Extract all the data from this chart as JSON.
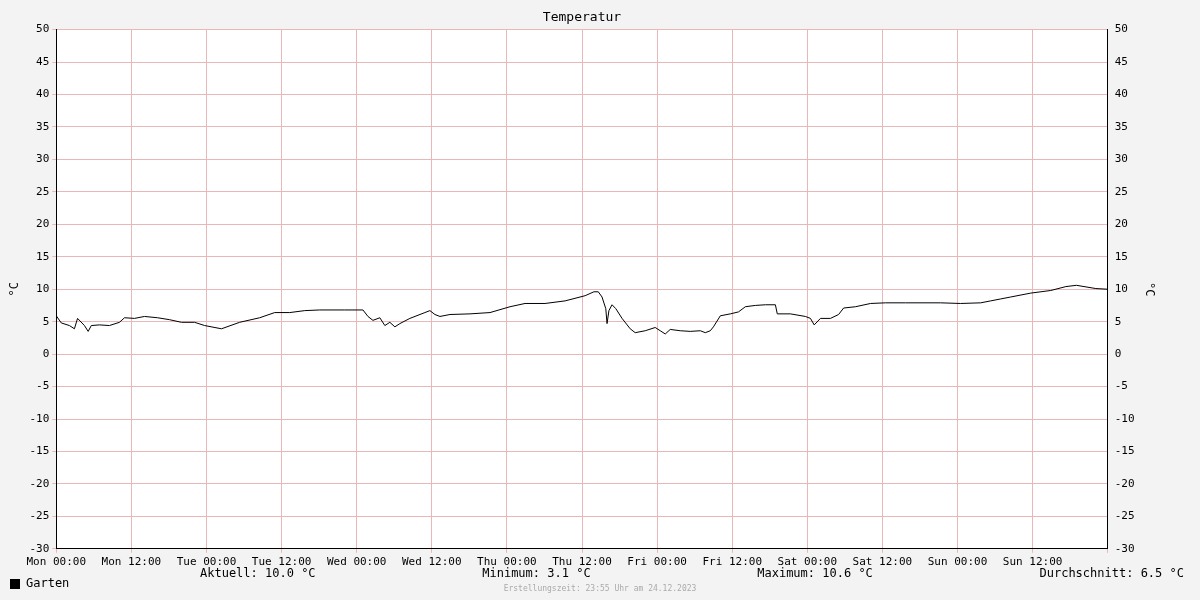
{
  "chart_data": {
    "type": "line",
    "title": "Temperatur",
    "ylabel": "°C",
    "y2label": "°C",
    "x": [
      "2023-12-18T00:00",
      "2023-12-18T00:48",
      "2023-12-18T02:06",
      "2023-12-18T02:54",
      "2023-12-18T03:24",
      "2023-12-18T04:30",
      "2023-12-18T05:06",
      "2023-12-18T05:36",
      "2023-12-18T06:54",
      "2023-12-18T08:30",
      "2023-12-18T10:06",
      "2023-12-18T10:54",
      "2023-12-18T12:30",
      "2023-12-18T14:06",
      "2023-12-18T16:12",
      "2023-12-18T18:06",
      "2023-12-18T20:00",
      "2023-12-18T22:06",
      "2023-12-18T23:42",
      "2023-12-19T02:24",
      "2023-12-19T05:18",
      "2023-12-19T08:30",
      "2023-12-19T10:54",
      "2023-12-19T13:18",
      "2023-12-19T15:42",
      "2023-12-19T18:06",
      "2023-12-19T22:06",
      "2023-12-20T01:00",
      "2023-12-20T01:48",
      "2023-12-20T02:36",
      "2023-12-20T03:42",
      "2023-12-20T04:30",
      "2023-12-20T05:18",
      "2023-12-20T06:06",
      "2023-12-20T06:54",
      "2023-12-20T08:30",
      "2023-12-20T10:54",
      "2023-12-20T11:42",
      "2023-12-20T12:30",
      "2023-12-20T13:18",
      "2023-12-20T14:54",
      "2023-12-20T18:06",
      "2023-12-20T21:18",
      "2023-12-21T00:30",
      "2023-12-21T02:54",
      "2023-12-21T06:06",
      "2023-12-21T09:18",
      "2023-12-21T12:30",
      "2023-12-21T13:54",
      "2023-12-21T14:36",
      "2023-12-21T15:12",
      "2023-12-21T15:48",
      "2023-12-21T16:00",
      "2023-12-21T16:18",
      "2023-12-21T16:48",
      "2023-12-21T17:24",
      "2023-12-21T18:24",
      "2023-12-21T19:42",
      "2023-12-21T20:30",
      "2023-12-21T22:06",
      "2023-12-21T23:42",
      "2023-12-22T00:30",
      "2023-12-22T01:18",
      "2023-12-22T02:06",
      "2023-12-22T03:42",
      "2023-12-22T05:18",
      "2023-12-22T06:54",
      "2023-12-22T07:42",
      "2023-12-22T08:30",
      "2023-12-22T09:00",
      "2023-12-22T10:06",
      "2023-12-22T11:42",
      "2023-12-22T13:00",
      "2023-12-22T14:06",
      "2023-12-22T15:42",
      "2023-12-22T17:18",
      "2023-12-22T18:54",
      "2023-12-22T19:12",
      "2023-12-22T21:18",
      "2023-12-22T23:42",
      "2023-12-23T00:30",
      "2023-12-23T01:06",
      "2023-12-23T02:06",
      "2023-12-23T03:42",
      "2023-12-23T05:00",
      "2023-12-23T05:48",
      "2023-12-23T07:42",
      "2023-12-23T10:06",
      "2023-12-23T12:30",
      "2023-12-23T15:42",
      "2023-12-23T21:18",
      "2023-12-24T00:30",
      "2023-12-24T03:42",
      "2023-12-24T05:18",
      "2023-12-24T06:54",
      "2023-12-24T08:30",
      "2023-12-24T11:42",
      "2023-12-24T14:54",
      "2023-12-24T17:18",
      "2023-12-24T19:00",
      "2023-12-24T22:06",
      "2023-12-24T23:55"
    ],
    "series": [
      {
        "name": "Garten",
        "color": "#000000",
        "values": [
          5.9,
          4.8,
          4.4,
          3.9,
          5.5,
          4.4,
          3.5,
          4.4,
          4.5,
          4.4,
          4.9,
          5.6,
          5.5,
          5.8,
          5.6,
          5.3,
          4.9,
          4.9,
          4.4,
          3.9,
          4.9,
          5.6,
          6.4,
          6.4,
          6.7,
          6.8,
          6.8,
          6.8,
          5.8,
          5.2,
          5.6,
          4.4,
          4.9,
          4.2,
          4.7,
          5.5,
          6.4,
          6.7,
          6.1,
          5.8,
          6.1,
          6.2,
          6.4,
          7.3,
          7.8,
          7.8,
          8.2,
          9,
          9.6,
          9.6,
          8.8,
          7,
          4.7,
          6.7,
          7.6,
          7,
          5.5,
          3.9,
          3.3,
          3.6,
          4.1,
          3.6,
          3.1,
          3.8,
          3.6,
          3.5,
          3.6,
          3.3,
          3.6,
          4.2,
          5.9,
          6.2,
          6.5,
          7.3,
          7.5,
          7.6,
          7.6,
          6.2,
          6.2,
          5.8,
          5.5,
          4.5,
          5.5,
          5.5,
          6.1,
          7.1,
          7.3,
          7.8,
          7.9,
          7.9,
          7.9,
          7.8,
          7.9,
          8.2,
          8.5,
          8.8,
          9.4,
          9.8,
          10.4,
          10.6,
          10.1,
          10
        ]
      }
    ],
    "xlim": [
      "2023-12-18T00:00",
      "2023-12-25T00:00"
    ],
    "xticks": [
      {
        "value": "2023-12-18T00:00",
        "label": "Mon 00:00"
      },
      {
        "value": "2023-12-18T12:00",
        "label": "Mon 12:00"
      },
      {
        "value": "2023-12-19T00:00",
        "label": "Tue 00:00"
      },
      {
        "value": "2023-12-19T12:00",
        "label": "Tue 12:00"
      },
      {
        "value": "2023-12-20T00:00",
        "label": "Wed 00:00"
      },
      {
        "value": "2023-12-20T12:00",
        "label": "Wed 12:00"
      },
      {
        "value": "2023-12-21T00:00",
        "label": "Thu 00:00"
      },
      {
        "value": "2023-12-21T12:00",
        "label": "Thu 12:00"
      },
      {
        "value": "2023-12-22T00:00",
        "label": "Fri 00:00"
      },
      {
        "value": "2023-12-22T12:00",
        "label": "Fri 12:00"
      },
      {
        "value": "2023-12-23T00:00",
        "label": "Sat 00:00"
      },
      {
        "value": "2023-12-23T12:00",
        "label": "Sat 12:00"
      },
      {
        "value": "2023-12-24T00:00",
        "label": "Sun 00:00"
      },
      {
        "value": "2023-12-24T12:00",
        "label": "Sun 12:00"
      },
      {
        "value": "2023-12-25T00:00",
        "label": null
      }
    ],
    "ylim": [
      -30,
      50
    ],
    "yticks": [
      -30,
      -25,
      -20,
      -15,
      -10,
      -5,
      0,
      5,
      10,
      15,
      20,
      25,
      30,
      35,
      40,
      45,
      50
    ],
    "y2lim": [
      -30,
      50
    ],
    "y2ticks": [
      -30,
      -25,
      -20,
      -15,
      -10,
      -5,
      0,
      5,
      10,
      15,
      20,
      25,
      30,
      35,
      40,
      45,
      50
    ],
    "grid": true,
    "legend": "bottom left",
    "marker": "none",
    "line_style": "solid",
    "annotations": [
      "Aktuell: 10.0 °C",
      "Minimum: 3.1 °C",
      "Maximum: 10.6 °C",
      "Durchschnitt: 6.5 °C",
      "Erstellungszeit: 23:55 Uhr am 24.12.2023"
    ]
  }
}
